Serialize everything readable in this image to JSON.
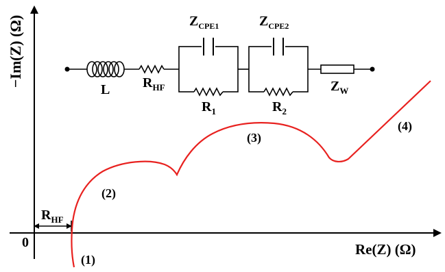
{
  "axes": {
    "y_label": "−Im(Z) (Ω)",
    "x_label": "Re(Z) (Ω)",
    "origin": "0",
    "rhf_base": "R",
    "rhf_sub": "HF"
  },
  "circuit": {
    "inductor": "L",
    "resistor_hf_base": "R",
    "resistor_hf_sub": "HF",
    "cpe1_base": "Z",
    "cpe1_sub": "CPE1",
    "r1_base": "R",
    "r1_sub": "1",
    "cpe2_base": "Z",
    "cpe2_sub": "CPE2",
    "r2_base": "R",
    "r2_sub": "2",
    "warburg_base": "Z",
    "warburg_sub": "W"
  },
  "regions": {
    "r1": "(1)",
    "r2": "(2)",
    "r3": "(3)",
    "r4": "(4)"
  },
  "colors": {
    "curve": "#e8211f",
    "ink": "#000000"
  }
}
